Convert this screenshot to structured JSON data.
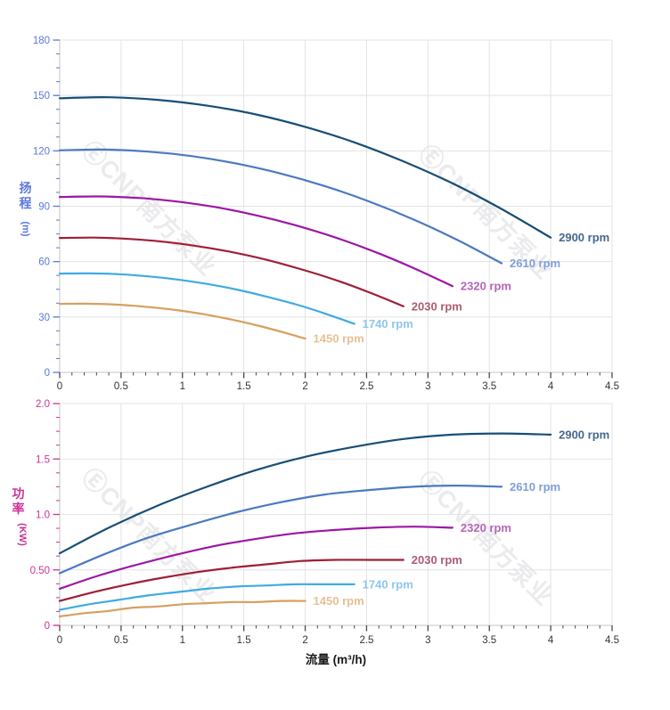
{
  "watermark": {
    "text": "ⒺCNP南方泵业"
  },
  "palette": {
    "head_axis": "#5b79d9",
    "power_axis": "#cc3399",
    "x_tick_text": "#333333",
    "grid": "#e3e3e3",
    "axis_line": "#c6c6c6",
    "x_tick_mark": "#4a4a4a"
  },
  "chart_data": [
    {
      "type": "line",
      "title": "",
      "ylabel": "扬程 (m)",
      "ylabel_main": "扬程",
      "ylabel_unit": "(m)",
      "xlabel": "",
      "xlim": [
        0,
        4.5
      ],
      "ylim": [
        0,
        180
      ],
      "grid": true,
      "legend_position": "right-of-curve-end",
      "x_tick_values": [
        0,
        0.5,
        1,
        1.5,
        2,
        2.5,
        3,
        3.5,
        4,
        4.5
      ],
      "x_tick_labels": [
        "0",
        "0.5",
        "1",
        "1.5",
        "2",
        "2.5",
        "3",
        "3.5",
        "4",
        "4.5"
      ],
      "y_tick_values": [
        0,
        30,
        60,
        90,
        120,
        150,
        180
      ],
      "y_tick_labels": [
        "0",
        "30",
        "60",
        "90",
        "120",
        "150",
        "180"
      ],
      "x_minor_step": 0.1,
      "y_minor_step": 7.5,
      "axis_color": "#5b79d9",
      "series": [
        {
          "name": "2900 rpm",
          "line_color": "#174e76",
          "label_color": "#45688e",
          "points": [
            [
              0,
              148.5
            ],
            [
              0.4,
              149.0
            ],
            [
              0.8,
              147.6
            ],
            [
              1.2,
              144.5
            ],
            [
              1.6,
              139.7
            ],
            [
              2.0,
              133.0
            ],
            [
              2.4,
              124.6
            ],
            [
              2.8,
              114.3
            ],
            [
              3.2,
              102.4
            ],
            [
              3.6,
              88.5
            ],
            [
              4.0,
              73.0
            ]
          ]
        },
        {
          "name": "2610 rpm",
          "line_color": "#4b79c1",
          "label_color": "#7e9fd8",
          "points": [
            [
              0,
              120.3
            ],
            [
              0.36,
              120.7
            ],
            [
              0.72,
              119.6
            ],
            [
              1.08,
              117.1
            ],
            [
              1.44,
              113.1
            ],
            [
              1.8,
              107.7
            ],
            [
              2.16,
              100.9
            ],
            [
              2.52,
              92.6
            ],
            [
              2.88,
              82.9
            ],
            [
              3.24,
              71.7
            ],
            [
              3.6,
              59.1
            ]
          ]
        },
        {
          "name": "2320 rpm",
          "line_color": "#9c17a4",
          "label_color": "#b565ba",
          "points": [
            [
              0,
              95.0
            ],
            [
              0.32,
              95.3
            ],
            [
              0.64,
              94.5
            ],
            [
              0.96,
              92.5
            ],
            [
              1.28,
              89.4
            ],
            [
              1.6,
              85.1
            ],
            [
              1.92,
              79.7
            ],
            [
              2.24,
              73.2
            ],
            [
              2.56,
              65.5
            ],
            [
              2.88,
              56.6
            ],
            [
              3.2,
              46.7
            ]
          ]
        },
        {
          "name": "2030 rpm",
          "line_color": "#9e1f35",
          "label_color": "#ad5c71",
          "points": [
            [
              0,
              72.8
            ],
            [
              0.28,
              73.0
            ],
            [
              0.56,
              72.3
            ],
            [
              0.84,
              70.8
            ],
            [
              1.12,
              68.4
            ],
            [
              1.4,
              65.2
            ],
            [
              1.68,
              61.1
            ],
            [
              1.96,
              56.0
            ],
            [
              2.24,
              50.2
            ],
            [
              2.52,
              43.4
            ],
            [
              2.8,
              35.8
            ]
          ]
        },
        {
          "name": "1740 rpm",
          "line_color": "#3fabe0",
          "label_color": "#8fc6ee",
          "points": [
            [
              0,
              53.5
            ],
            [
              0.24,
              53.6
            ],
            [
              0.48,
              53.2
            ],
            [
              0.72,
              52.0
            ],
            [
              0.96,
              50.3
            ],
            [
              1.2,
              47.9
            ],
            [
              1.44,
              44.9
            ],
            [
              1.68,
              41.1
            ],
            [
              1.92,
              36.9
            ],
            [
              2.16,
              31.9
            ],
            [
              2.4,
              26.3
            ]
          ]
        },
        {
          "name": "1450 rpm",
          "line_color": "#d5a05e",
          "label_color": "#e5c093",
          "points": [
            [
              0,
              37.1
            ],
            [
              0.2,
              37.2
            ],
            [
              0.4,
              36.9
            ],
            [
              0.6,
              36.1
            ],
            [
              0.8,
              34.9
            ],
            [
              1.0,
              33.3
            ],
            [
              1.2,
              31.2
            ],
            [
              1.4,
              28.6
            ],
            [
              1.6,
              25.6
            ],
            [
              1.8,
              22.1
            ],
            [
              2.0,
              18.3
            ]
          ]
        }
      ]
    },
    {
      "type": "line",
      "title": "",
      "ylabel": "功率 (KW)",
      "ylabel_main": "功率",
      "ylabel_unit": "(KW)",
      "xlabel": "流量 (m³/h)",
      "xlim": [
        0,
        4.5
      ],
      "ylim": [
        0,
        2.0
      ],
      "grid": true,
      "legend_position": "right-of-curve-end",
      "x_tick_values": [
        0,
        0.5,
        1,
        1.5,
        2,
        2.5,
        3,
        3.5,
        4,
        4.5
      ],
      "x_tick_labels": [
        "0",
        "0.5",
        "1",
        "1.5",
        "2",
        "2.5",
        "3",
        "3.5",
        "4",
        "4.5"
      ],
      "y_tick_values": [
        0,
        0.5,
        1.0,
        1.5,
        2.0
      ],
      "y_tick_labels": [
        "0",
        "0.50",
        "1.0",
        "1.5",
        "2.0"
      ],
      "x_minor_step": 0.1,
      "y_minor_step": 0.125,
      "axis_color": "#cc3399",
      "series": [
        {
          "name": "2900 rpm",
          "line_color": "#174e76",
          "label_color": "#45688e",
          "points": [
            [
              0,
              0.65
            ],
            [
              0.4,
              0.88
            ],
            [
              0.8,
              1.08
            ],
            [
              1.2,
              1.25
            ],
            [
              1.6,
              1.4
            ],
            [
              2.0,
              1.52
            ],
            [
              2.4,
              1.61
            ],
            [
              2.8,
              1.68
            ],
            [
              3.2,
              1.72
            ],
            [
              3.6,
              1.73
            ],
            [
              4.0,
              1.72
            ]
          ]
        },
        {
          "name": "2610 rpm",
          "line_color": "#4b79c1",
          "label_color": "#7e9fd8",
          "points": [
            [
              0,
              0.47
            ],
            [
              0.36,
              0.64
            ],
            [
              0.72,
              0.79
            ],
            [
              1.08,
              0.91
            ],
            [
              1.44,
              1.02
            ],
            [
              1.8,
              1.11
            ],
            [
              2.16,
              1.18
            ],
            [
              2.52,
              1.22
            ],
            [
              2.88,
              1.25
            ],
            [
              3.24,
              1.26
            ],
            [
              3.6,
              1.25
            ]
          ]
        },
        {
          "name": "2320 rpm",
          "line_color": "#9c17a4",
          "label_color": "#b565ba",
          "points": [
            [
              0,
              0.33
            ],
            [
              0.32,
              0.45
            ],
            [
              0.64,
              0.55
            ],
            [
              0.96,
              0.64
            ],
            [
              1.28,
              0.72
            ],
            [
              1.6,
              0.78
            ],
            [
              1.92,
              0.83
            ],
            [
              2.24,
              0.86
            ],
            [
              2.56,
              0.88
            ],
            [
              2.88,
              0.89
            ],
            [
              3.2,
              0.88
            ]
          ]
        },
        {
          "name": "2030 rpm",
          "line_color": "#9e1f35",
          "label_color": "#ad5c71",
          "points": [
            [
              0,
              0.22
            ],
            [
              0.28,
              0.3
            ],
            [
              0.56,
              0.37
            ],
            [
              0.84,
              0.43
            ],
            [
              1.12,
              0.48
            ],
            [
              1.4,
              0.52
            ],
            [
              1.68,
              0.55
            ],
            [
              1.96,
              0.58
            ],
            [
              2.24,
              0.59
            ],
            [
              2.52,
              0.59
            ],
            [
              2.8,
              0.59
            ]
          ]
        },
        {
          "name": "1740 rpm",
          "line_color": "#3fabe0",
          "label_color": "#8fc6ee",
          "points": [
            [
              0,
              0.14
            ],
            [
              0.24,
              0.19
            ],
            [
              0.48,
              0.23
            ],
            [
              0.72,
              0.27
            ],
            [
              0.96,
              0.3
            ],
            [
              1.2,
              0.33
            ],
            [
              1.44,
              0.35
            ],
            [
              1.68,
              0.36
            ],
            [
              1.92,
              0.37
            ],
            [
              2.16,
              0.37
            ],
            [
              2.4,
              0.37
            ]
          ]
        },
        {
          "name": "1450 rpm",
          "line_color": "#d5a05e",
          "label_color": "#e5c093",
          "points": [
            [
              0,
              0.08
            ],
            [
              0.2,
              0.11
            ],
            [
              0.4,
              0.13
            ],
            [
              0.6,
              0.16
            ],
            [
              0.8,
              0.17
            ],
            [
              1.0,
              0.19
            ],
            [
              1.2,
              0.2
            ],
            [
              1.4,
              0.21
            ],
            [
              1.6,
              0.21
            ],
            [
              1.8,
              0.22
            ],
            [
              2.0,
              0.22
            ]
          ]
        }
      ]
    }
  ]
}
